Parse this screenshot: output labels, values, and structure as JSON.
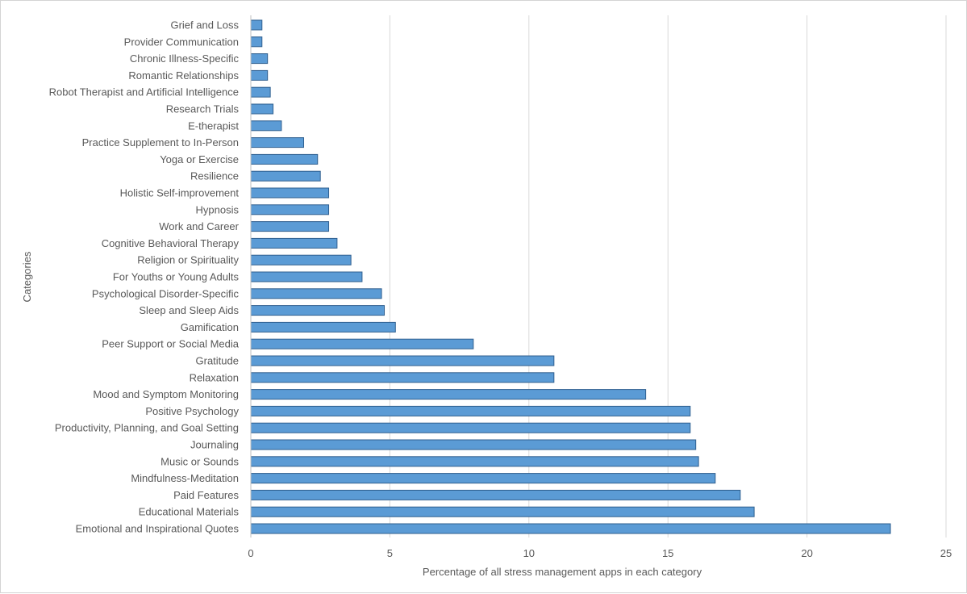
{
  "chart_data": {
    "type": "bar",
    "orientation": "horizontal",
    "title": "",
    "xlabel": "Percentage of all stress management apps in each category",
    "ylabel": "Categories",
    "xlim": [
      0,
      25
    ],
    "xticks": [
      0,
      5,
      10,
      15,
      20,
      25
    ],
    "grid": true,
    "legend": "none",
    "bar_color": "#5b9bd5",
    "bar_edge_color": "#2f5f8f",
    "categories": [
      "Grief and Loss",
      "Provider Communication",
      "Chronic Illness-Specific",
      "Romantic Relationships",
      "Robot Therapist and Artificial Intelligence",
      "Research Trials",
      "E-therapist",
      "Practice Supplement to In-Person",
      "Yoga or Exercise",
      "Resilience",
      "Holistic Self-improvement",
      "Hypnosis",
      "Work and Career",
      "Cognitive Behavioral Therapy",
      "Religion or Spirituality",
      "For Youths or Young Adults",
      "Psychological Disorder-Specific",
      "Sleep and Sleep Aids",
      "Gamification",
      "Peer Support or Social Media",
      "Gratitude",
      "Relaxation",
      "Mood and Symptom Monitoring",
      "Positive Psychology",
      "Productivity, Planning, and Goal Setting",
      "Journaling",
      "Music or Sounds",
      "Mindfulness-Meditation",
      "Paid Features",
      "Educational Materials",
      "Emotional and Inspirational Quotes"
    ],
    "values": [
      0.4,
      0.4,
      0.6,
      0.6,
      0.7,
      0.8,
      1.1,
      1.9,
      2.4,
      2.5,
      2.8,
      2.8,
      2.8,
      3.1,
      3.6,
      4.0,
      4.7,
      4.8,
      5.2,
      8.0,
      10.9,
      10.9,
      14.2,
      15.8,
      15.8,
      16.0,
      16.1,
      16.7,
      17.6,
      18.1,
      23.0
    ]
  }
}
